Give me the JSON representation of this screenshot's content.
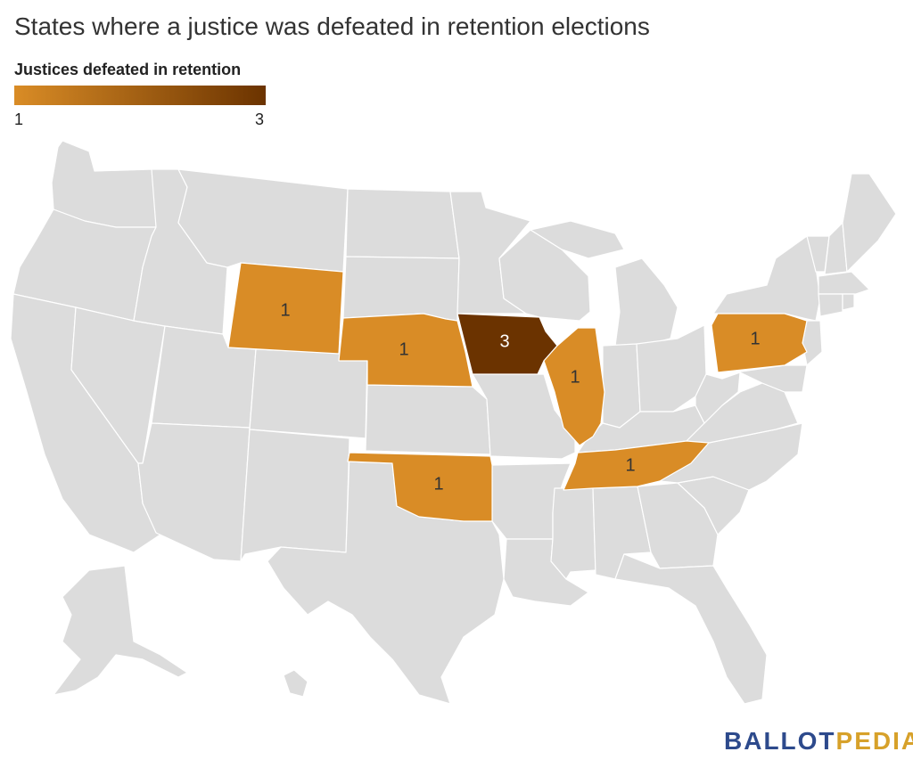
{
  "title": "States where a justice was defeated in retention elections",
  "legend": {
    "title": "Justices defeated in retention",
    "min_label": "1",
    "max_label": "3",
    "color_min": "#d98c26",
    "color_max": "#6b3300"
  },
  "colors": {
    "base_state": "#dcdcdc",
    "border": "#ffffff",
    "value_1": "#d98c26",
    "value_3": "#6b3300"
  },
  "states": {
    "wyoming": {
      "name": "Wyoming",
      "value": "1"
    },
    "nebraska": {
      "name": "Nebraska",
      "value": "1"
    },
    "iowa": {
      "name": "Iowa",
      "value": "3"
    },
    "illinois": {
      "name": "Illinois",
      "value": "1"
    },
    "pennsylvania": {
      "name": "Pennsylvania",
      "value": "1"
    },
    "oklahoma": {
      "name": "Oklahoma",
      "value": "1"
    },
    "tennessee": {
      "name": "Tennessee",
      "value": "1"
    }
  },
  "logo": {
    "part1": "BALLOT",
    "part2": "PEDIA"
  }
}
